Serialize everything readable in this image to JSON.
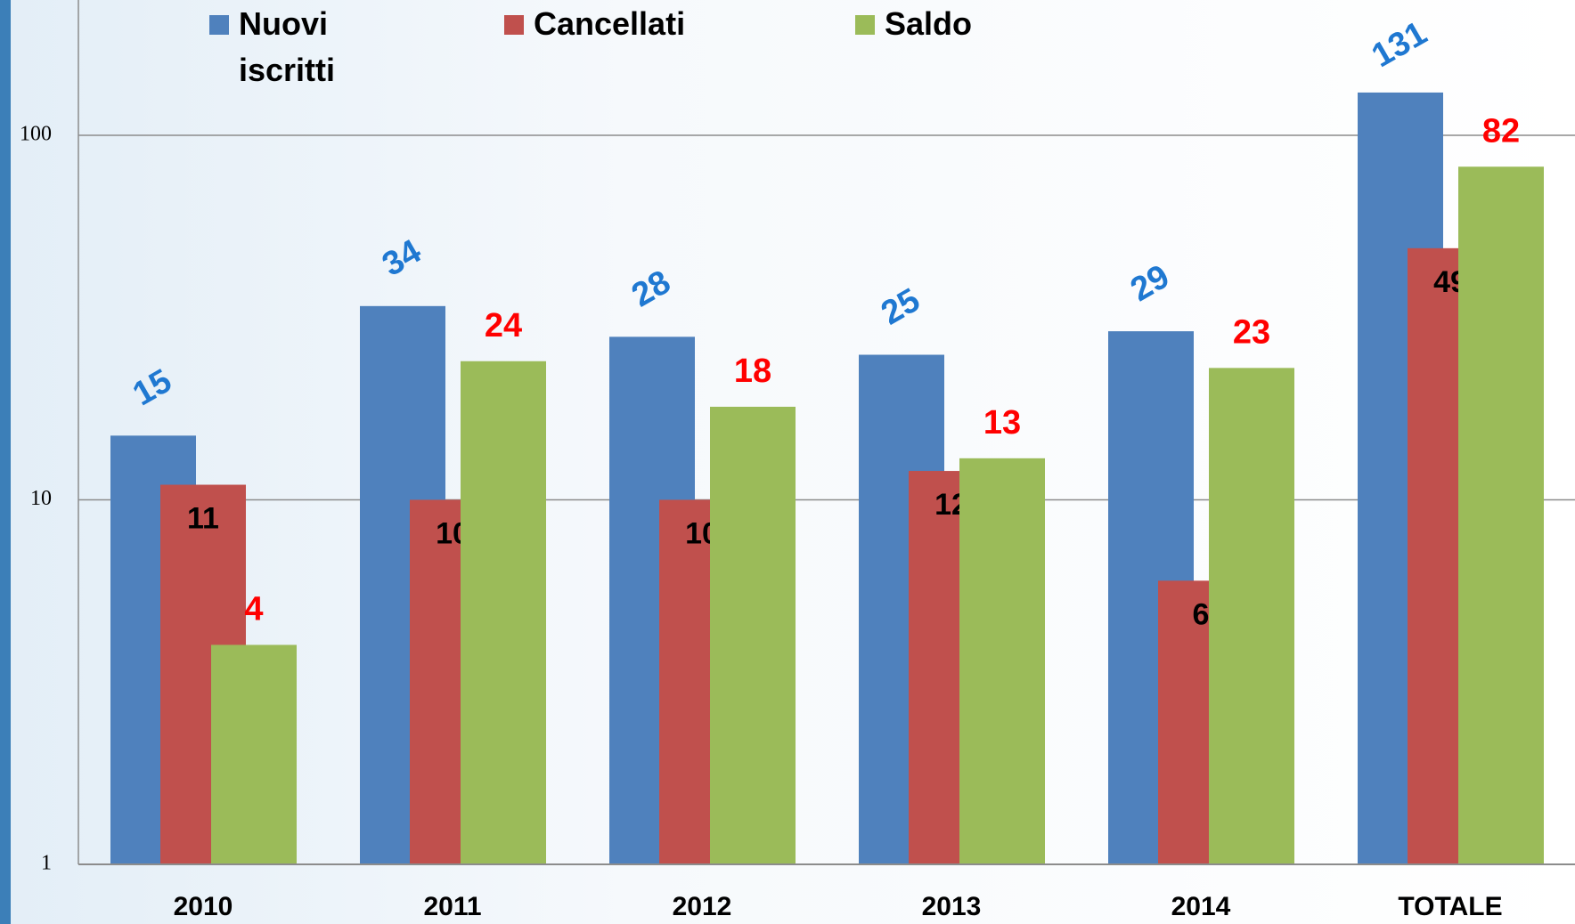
{
  "chart_data": {
    "type": "bar",
    "log_scale": true,
    "grid": true,
    "legend": "top",
    "categories": [
      "2010",
      "2011",
      "2012",
      "2013",
      "2014",
      "TOTALE"
    ],
    "series": [
      {
        "name": "Nuovi iscritti",
        "color": "#4f81bd",
        "label_color": "#1f78d1",
        "values": [
          15,
          34,
          28,
          25,
          29,
          131
        ]
      },
      {
        "name": "Cancellati",
        "color": "#c0504d",
        "label_color": "#000000",
        "values": [
          11,
          10,
          10,
          12,
          6,
          49
        ]
      },
      {
        "name": "Saldo",
        "color": "#9bbb59",
        "label_color": "#ff0000",
        "values": [
          4,
          24,
          18,
          13,
          23,
          82
        ]
      }
    ],
    "ylim": [
      1,
      235
    ],
    "yticks": [
      1,
      10,
      100
    ]
  }
}
